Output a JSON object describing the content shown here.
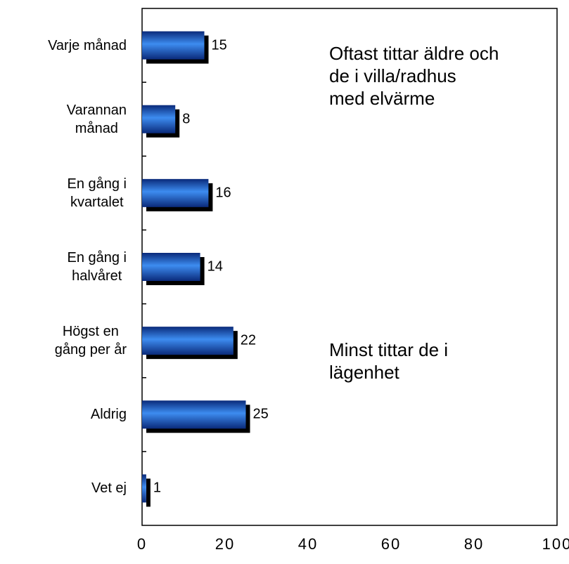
{
  "chart_data": {
    "type": "barh",
    "categories": [
      "Varje månad",
      "Varannan\nmånad",
      "En gång i\nkvartalet",
      "En gång i\nhalvåret",
      "Högst en\ngång per år",
      "Aldrig",
      "Vet ej"
    ],
    "values": [
      15,
      8,
      16,
      14,
      22,
      25,
      1
    ],
    "color": "#1f5fc8",
    "xlim": [
      0,
      100
    ],
    "xticks": [
      0,
      20,
      40,
      60,
      80,
      100
    ],
    "annotations": [
      "Oftast tittar äldre och\nde i villa/radhus\nmed elvärme",
      "Minst tittar de i\nlägenhet"
    ]
  }
}
